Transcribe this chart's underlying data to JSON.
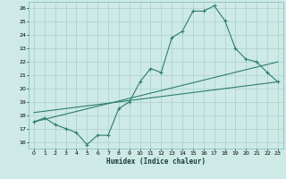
{
  "xlabel": "Humidex (Indice chaleur)",
  "bg_color": "#cdeae6",
  "line_color": "#2e7d6e",
  "grid_color": "#aed4cf",
  "xlim": [
    -0.5,
    23.5
  ],
  "ylim": [
    15.5,
    26.5
  ],
  "xticks": [
    0,
    1,
    2,
    3,
    4,
    5,
    6,
    7,
    8,
    9,
    10,
    11,
    12,
    13,
    14,
    15,
    16,
    17,
    18,
    19,
    20,
    21,
    22,
    23
  ],
  "yticks": [
    16,
    17,
    18,
    19,
    20,
    21,
    22,
    23,
    24,
    25,
    26
  ],
  "series1_x": [
    0,
    1,
    2,
    3,
    4,
    5,
    6,
    7,
    8,
    9,
    10,
    11,
    12,
    13,
    14,
    15,
    16,
    17,
    18,
    19,
    20,
    21,
    22,
    23
  ],
  "series1_y": [
    17.5,
    17.8,
    17.3,
    17.0,
    16.7,
    15.8,
    16.5,
    16.5,
    18.5,
    19.0,
    20.5,
    21.5,
    21.2,
    23.8,
    24.3,
    25.8,
    25.8,
    26.2,
    25.1,
    23.0,
    22.2,
    22.0,
    21.2,
    20.5
  ],
  "line2_x": [
    0,
    23
  ],
  "line2_y": [
    17.5,
    22.0
  ],
  "line3_x": [
    0,
    23
  ],
  "line3_y": [
    18.2,
    20.5
  ]
}
